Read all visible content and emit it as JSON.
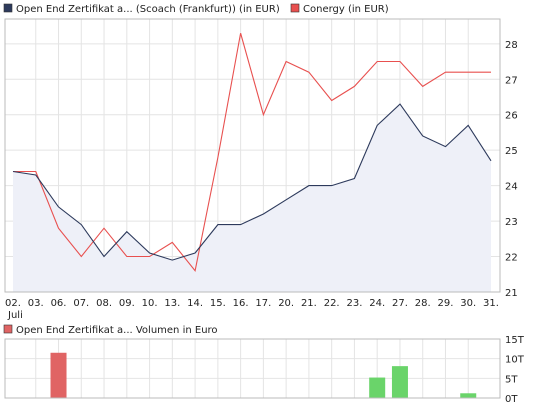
{
  "legend": {
    "series1_label": "Open End Zertifikat a... (Scoach (Frankfurt)) (in EUR)",
    "series2_label": "Conergy (in EUR)",
    "volume_label": "Open End Zertifikat a... Volumen in Euro"
  },
  "colors": {
    "series1": "#2d3a5c",
    "series1_fill": "#eef0f8",
    "series2": "#e8504f",
    "volume_down": "#e06464",
    "volume_up": "#6ad46a",
    "grid": "#e4e4e4",
    "frame": "#bbbbbb"
  },
  "chart_data": [
    {
      "type": "line",
      "x": [
        "02.",
        "03.",
        "06.",
        "07.",
        "08.",
        "09.",
        "10.",
        "13.",
        "14.",
        "15.",
        "16.",
        "17.",
        "20.",
        "21.",
        "22.",
        "23.",
        "24.",
        "27.",
        "28.",
        "29.",
        "30.",
        "31."
      ],
      "month_label": "Juli",
      "series": [
        {
          "name": "Open End Zertifikat a... (Scoach (Frankfurt)) (in EUR)",
          "area": true,
          "values": [
            24.4,
            24.3,
            23.4,
            22.9,
            22.0,
            22.7,
            22.1,
            21.9,
            22.1,
            22.9,
            22.9,
            23.2,
            23.6,
            24.0,
            24.0,
            24.2,
            25.7,
            26.3,
            25.4,
            25.1,
            25.7,
            24.7
          ]
        },
        {
          "name": "Conergy (in EUR)",
          "area": false,
          "values": [
            24.4,
            24.4,
            22.8,
            22.0,
            22.8,
            22.0,
            22.0,
            22.4,
            21.6,
            24.8,
            28.3,
            26.0,
            27.5,
            27.2,
            26.4,
            26.8,
            27.5,
            27.5,
            26.8,
            27.2,
            27.2,
            27.2
          ]
        }
      ],
      "y_ticks": [
        "21",
        "22",
        "23",
        "24",
        "25",
        "26",
        "27",
        "28"
      ],
      "ylim": [
        21,
        28.7
      ],
      "grid": true
    },
    {
      "type": "bar",
      "x": [
        "02.",
        "03.",
        "06.",
        "07.",
        "08.",
        "09.",
        "10.",
        "13.",
        "14.",
        "15.",
        "16.",
        "17.",
        "20.",
        "21.",
        "22.",
        "23.",
        "24.",
        "27.",
        "28.",
        "29.",
        "30.",
        "31."
      ],
      "series": [
        {
          "name": "Open End Zertifikat a... Volumen in Euro",
          "values": [
            0,
            0,
            11500,
            0,
            0,
            0,
            0,
            0,
            0,
            0,
            0,
            0,
            0,
            0,
            0,
            0,
            5200,
            8100,
            0,
            0,
            1200,
            0
          ],
          "direction": [
            "",
            "",
            "down",
            "",
            "",
            "",
            "",
            "",
            "",
            "",
            "",
            "",
            "",
            "",
            "",
            "",
            "up",
            "up",
            "",
            "",
            "up",
            ""
          ]
        }
      ],
      "y_ticks": [
        "0T",
        "5T",
        "10T",
        "15T"
      ],
      "ylim": [
        0,
        15000
      ],
      "grid": true
    }
  ]
}
